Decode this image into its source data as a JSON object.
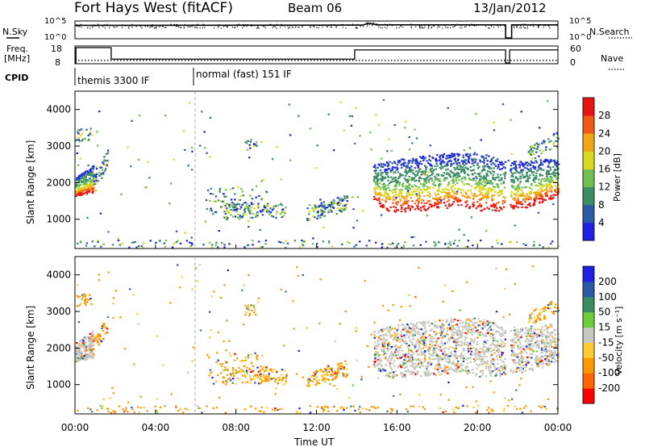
{
  "header": {
    "site": "Fort Hays West (fitACF)",
    "beam": "Beam 06",
    "date": "13/Jan/2012"
  },
  "left_labels": {
    "nsky": "N.Sky",
    "freq": "Freq.",
    "freq_unit": "[MHz]",
    "cpid": "CPID"
  },
  "right_labels": {
    "nsearch": "N.Search",
    "nave": "Nave"
  },
  "cpid_segments": [
    "themis 3300 IF",
    "normal (fast) 151 IF"
  ],
  "colors": {
    "power": [
      "#1f1fe6",
      "#2a5aa6",
      "#3c8c64",
      "#6fbf52",
      "#d8d820",
      "#f2a616",
      "#f05a14",
      "#e81414"
    ],
    "velocity": [
      "#ff0000",
      "#ff6600",
      "#ff9900",
      "#ffcc33",
      "#c8c8c0",
      "#6fcc3c",
      "#3c8c64",
      "#2a5aa6",
      "#1f1fe6"
    ]
  },
  "chart_data": [
    {
      "type": "line",
      "name_left": "N.Sky",
      "name_right": "N.Search",
      "yticks_left": [
        "10^5",
        "10^0"
      ],
      "yticks_right": [
        "10^5",
        "10^0"
      ],
      "series": [
        {
          "x": [
            0.0,
            0.05,
            0.05,
            14.3,
            14.6,
            15.0,
            21.4,
            21.4,
            21.7,
            21.7,
            24.0
          ],
          "y": [
            4.5,
            4.5,
            4.5,
            4.6,
            5.3,
            4.7,
            4.7,
            0.0,
            0.0,
            4.7,
            4.7
          ]
        }
      ]
    },
    {
      "type": "line",
      "ylabel_left": "Freq. [MHz]",
      "ylabel_right": "Nave",
      "yticks_left": [
        "18",
        "8"
      ],
      "yticks_right": [
        "60",
        "0"
      ],
      "series": [
        {
          "name": "Freq.",
          "x": [
            0.0,
            0.05,
            0.05,
            1.8,
            1.8,
            13.9,
            13.9,
            21.4,
            21.4,
            21.6,
            21.6,
            24.0
          ],
          "y": [
            8,
            8,
            18,
            18,
            10.5,
            10.5,
            16.5,
            16.5,
            8,
            8,
            16.5,
            16.5
          ]
        },
        {
          "name": "Nave",
          "x": [
            0.0,
            24.0
          ],
          "y": [
            10,
            10
          ]
        }
      ]
    },
    {
      "type": "heatmap",
      "ylabel": "Slant Range [km]",
      "colorbar_label": "Power [dB]",
      "colorbar_ticks": [
        "28",
        "24",
        "20",
        "16",
        "12",
        "8",
        "4"
      ],
      "yticks": [
        "4000",
        "3000",
        "2000",
        "1000"
      ],
      "ylim": [
        200,
        4500
      ],
      "xlim": [
        0,
        24
      ]
    },
    {
      "type": "heatmap",
      "ylabel": "Slant Range [km]",
      "colorbar_label": "Velocity [m s⁻¹]",
      "colorbar_ticks": [
        "200",
        "100",
        "50",
        "15",
        "-15",
        "-50",
        "-100",
        "-200"
      ],
      "yticks": [
        "4000",
        "3000",
        "2000",
        "1000"
      ],
      "xticks": [
        "00:00",
        "04:00",
        "08:00",
        "12:00",
        "16:00",
        "20:00",
        "00:00"
      ],
      "xlabel": "Time UT",
      "ylim": [
        200,
        4500
      ],
      "xlim": [
        0,
        24
      ]
    }
  ]
}
